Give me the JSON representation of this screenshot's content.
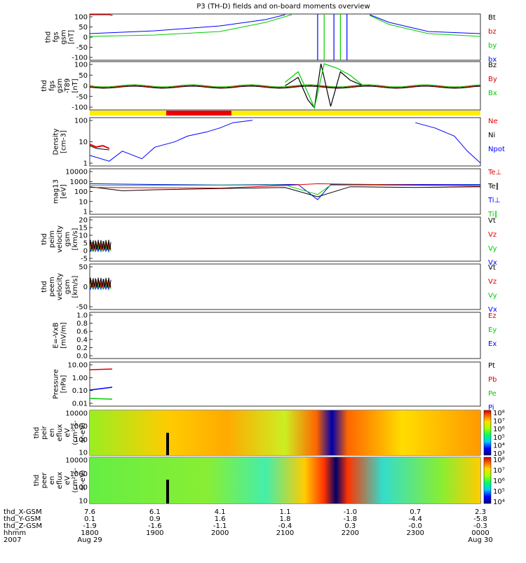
{
  "title": "P3 (TH-D) fields and on-board moments overview",
  "colors": {
    "black": "#000000",
    "red": "#e00000",
    "green": "#00cc00",
    "blue": "#0000ff",
    "yellow": "#ffee00",
    "bar_red": "#ee0000"
  },
  "panels": [
    {
      "id": "fgs",
      "ylabel": [
        "thd",
        "fgs",
        "gsm",
        "[nT]"
      ],
      "ticks": [
        "100",
        "50",
        "0",
        "-50",
        "-100"
      ],
      "legend": [
        {
          "t": "Bt",
          "c": "#000000"
        },
        {
          "t": "bz",
          "c": "#e00000"
        },
        {
          "t": "by",
          "c": "#00cc00"
        },
        {
          "t": "bx",
          "c": "#0000ff"
        }
      ]
    },
    {
      "id": "fgs_t89",
      "ylabel": [
        "thd",
        "fgs",
        "gsm",
        "-T89",
        "[nT]"
      ],
      "ticks": [
        "100",
        "50",
        "0",
        "-50",
        "-100"
      ],
      "legend": [
        {
          "t": "Bz",
          "c": "#000000"
        },
        {
          "t": "By",
          "c": "#e00000"
        },
        {
          "t": "Bx",
          "c": "#00cc00"
        }
      ]
    },
    {
      "id": "density",
      "ylabel": [
        "Density",
        "[cm-3]"
      ],
      "ticks": [
        "100",
        "10",
        "1"
      ],
      "legend": [
        {
          "t": "Ne",
          "c": "#e00000"
        },
        {
          "t": "Ni",
          "c": "#000000"
        },
        {
          "t": "Npot",
          "c": "#0000ff"
        }
      ]
    },
    {
      "id": "temp",
      "ylabel": [
        "mag13",
        "[eV]"
      ],
      "ticks": [
        "10000",
        "1000",
        "100",
        "10",
        "1"
      ],
      "legend": [
        {
          "t": "Te⊥",
          "c": "#e00000"
        },
        {
          "t": "Te∥",
          "c": "#000000"
        },
        {
          "t": "Ti⊥",
          "c": "#0000ff"
        },
        {
          "t": "Ti∥",
          "c": "#00cc00"
        }
      ]
    },
    {
      "id": "peim",
      "ylabel": [
        "thd",
        "peim",
        "velocity",
        "gsm",
        "[km/s]"
      ],
      "ticks": [
        "20",
        "15",
        "10",
        "5",
        "0",
        "-5"
      ],
      "legend": [
        {
          "t": "Vt",
          "c": "#000000"
        },
        {
          "t": "Vz",
          "c": "#e00000"
        },
        {
          "t": "Vy",
          "c": "#00cc00"
        },
        {
          "t": "Vx",
          "c": "#0000ff"
        }
      ]
    },
    {
      "id": "peem",
      "ylabel": [
        "thd",
        "peem",
        "velocity",
        "gsm",
        "[km/s]"
      ],
      "ticks": [
        "50",
        "0",
        "-50"
      ],
      "legend": [
        {
          "t": "Vt",
          "c": "#000000"
        },
        {
          "t": "Vz",
          "c": "#e00000"
        },
        {
          "t": "Vy",
          "c": "#00cc00"
        },
        {
          "t": "Vx",
          "c": "#0000ff"
        }
      ]
    },
    {
      "id": "efield",
      "ylabel": [
        "E=-VxB",
        "[mV/m]"
      ],
      "ticks": [
        "1.0",
        "0.8",
        "0.6",
        "0.4",
        "0.2",
        "0.0"
      ],
      "legend": [
        {
          "t": "Ez",
          "c": "#e00000"
        },
        {
          "t": "Ey",
          "c": "#00cc00"
        },
        {
          "t": "Ex",
          "c": "#0000ff"
        }
      ]
    },
    {
      "id": "pressure",
      "ylabel": [
        "Pressure",
        "[nPa]"
      ],
      "ticks": [
        "10.00",
        "1.00",
        "0.10",
        "0.01"
      ],
      "legend": [
        {
          "t": "Pt",
          "c": "#000000"
        },
        {
          "t": "Pb",
          "c": "#e00000"
        },
        {
          "t": "Pe",
          "c": "#00cc00"
        },
        {
          "t": "Pi",
          "c": "#0000ff"
        }
      ]
    },
    {
      "id": "peir",
      "ylabel": [
        "thd",
        "peir",
        "en",
        "eflux",
        "eV",
        "(cm²-s-",
        "sr-eV)"
      ],
      "ticks": [
        "10000",
        "1000",
        "100",
        "10"
      ],
      "colorbar": [
        "10⁸",
        "10⁷",
        "10⁶",
        "10⁵",
        "10⁴",
        "10³"
      ]
    },
    {
      "id": "peer",
      "ylabel": [
        "thd",
        "peer",
        "en",
        "eflux",
        "eV",
        "(cm²-s-",
        "sr-eV)"
      ],
      "ticks": [
        "10000",
        "1000",
        "100",
        "10"
      ],
      "colorbar": [
        "10⁸",
        "10⁷",
        "10⁶",
        "10⁵",
        "10⁴"
      ]
    }
  ],
  "xaxis": {
    "rows": [
      {
        "label": "thd_X-GSM",
        "values": [
          "7.6",
          "6.1",
          "4.1",
          "1.1",
          "-1.0",
          "0.7",
          "2.3"
        ]
      },
      {
        "label": "thd_Y-GSM",
        "values": [
          "0.1",
          "0.9",
          "1.6",
          "1.8",
          "-1.8",
          "-4.4",
          "-5.8"
        ]
      },
      {
        "label": "thd_Z-GSM",
        "values": [
          "-1.9",
          "-1.6",
          "-1.1",
          "-0.4",
          "0.3",
          "-0.0",
          "-0.3"
        ]
      },
      {
        "label": "hhmm",
        "values": [
          "1800",
          "1900",
          "2000",
          "2100",
          "2200",
          "2300",
          "0000"
        ]
      },
      {
        "label": "2007",
        "values": [
          "Aug 29",
          "",
          "",
          "",
          "",
          "",
          "Aug 30"
        ]
      }
    ]
  },
  "chart_data": {
    "type": "line",
    "title": "P3 (TH-D) fields and on-board moments overview",
    "x_range_hhmm": [
      "1800",
      "0000"
    ],
    "series": [
      {
        "panel": "density",
        "name": "Npot",
        "x_hours": [
          0,
          0.3,
          0.5,
          0.8,
          1.0,
          1.3,
          1.5,
          1.8,
          2.0,
          2.2,
          2.5
        ],
        "values": [
          3,
          1.5,
          5,
          2,
          8,
          15,
          30,
          50,
          80,
          150,
          200
        ]
      },
      {
        "panel": "density",
        "name": "Npot_end",
        "x_hours": [
          5.0,
          5.3,
          5.6,
          5.8,
          6.0
        ],
        "values": [
          150,
          80,
          30,
          5,
          1.2
        ]
      },
      {
        "panel": "temp",
        "name": "Ti⊥",
        "x_hours": [
          0,
          1,
          2,
          3,
          3.2,
          3.5,
          3.7,
          4,
          5,
          6
        ],
        "values": [
          600,
          500,
          450,
          500,
          500,
          15,
          500,
          500,
          500,
          500
        ]
      },
      {
        "panel": "temp",
        "name": "Te∥",
        "x_hours": [
          0,
          0.5,
          1,
          2,
          3,
          3.5,
          4,
          5,
          6
        ],
        "values": [
          300,
          120,
          150,
          200,
          250,
          30,
          300,
          250,
          300
        ]
      }
    ]
  }
}
